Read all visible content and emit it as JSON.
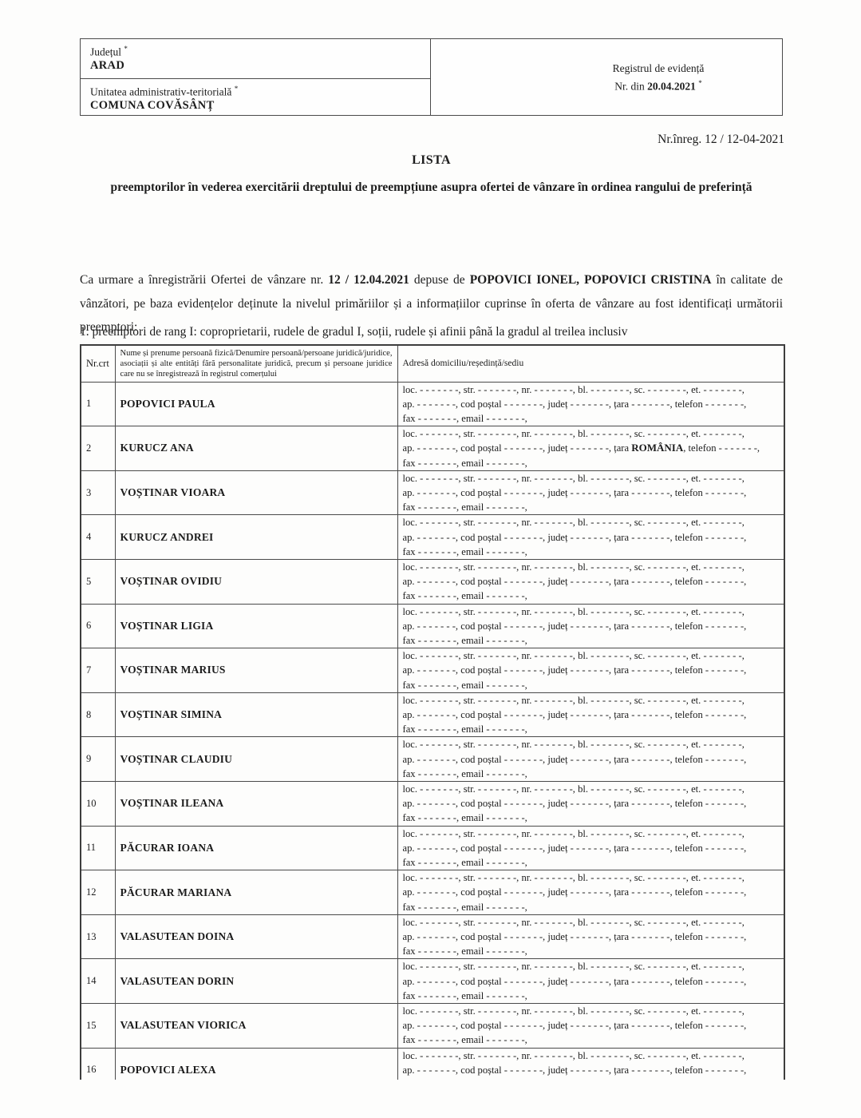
{
  "header": {
    "judet_label": "Județul",
    "judet_value": "ARAD",
    "uat_label": "Unitatea administrativ-teritorială",
    "uat_value": "COMUNA COVĂSÂNȚ",
    "registru_line1": "Registrul de evidență",
    "registru_prefix": "Nr. din ",
    "registru_date": "20.04.2021",
    "asterisk": "*"
  },
  "doc": {
    "nr_inreg": "Nr.înreg. 12 / 12-04-2021",
    "title": "LISTA",
    "subtitle": "preemptorilor în vederea exercitării dreptului de preempțiune asupra ofertei de vânzare în ordinea rangului de preferință",
    "para_part1": "Ca urmare a înregistrării Ofertei de vânzare nr. ",
    "para_bold1": "12 / 12.04.2021",
    "para_part2": " depuse de ",
    "para_bold2": "POPOVICI IONEL, POPOVICI CRISTINA",
    "para_part3": " în calitate de vânzători, pe baza evidențelor deținute la nivelul primăriilor și a informațiilor cuprinse în oferta de vânzare au fost identificați următorii preemptori:",
    "rank_line": "1. preemptori de rang I: coproprietarii, rudele de gradul I, soții, rudele și afinii până la gradul al treilea inclusiv"
  },
  "table": {
    "col1_header": "Nr.crt",
    "col2_header": "Nume și prenume persoană fizică/Denumire persoană/persoane juridică/juridice, asociații și alte entități fără personalitate juridică, precum și persoane juridice care nu se înregistrează în registrul comerțului",
    "col3_header": "Adresă domiciliu/reședință/sediu",
    "addr_line1": "loc. - - - - - - -, str. - - - - - - -, nr. - - - - - - -, bl. - - - - - - -, sc. - - - - - - -, et. - - - - - - -,",
    "addr_line2_prefix": "ap. - - - - - - -, cod poștal - - - - - - -, județ - - - - - - -, țara ",
    "addr_tara_placeholder": "- - - - - - -",
    "addr_line2_suffix": ", telefon - - - - - - -,",
    "addr_line3": "fax - - - - - - -, email - - - - - - -,",
    "rows": [
      {
        "nr": "1",
        "name": "POPOVICI PAULA",
        "tara": null
      },
      {
        "nr": "2",
        "name": "KURUCZ ANA",
        "tara": "ROMÂNIA"
      },
      {
        "nr": "3",
        "name": "VOȘTINAR VIOARA",
        "tara": null
      },
      {
        "nr": "4",
        "name": "KURUCZ ANDREI",
        "tara": null
      },
      {
        "nr": "5",
        "name": "VOȘTINAR OVIDIU",
        "tara": null
      },
      {
        "nr": "6",
        "name": "VOȘTINAR LIGIA",
        "tara": null
      },
      {
        "nr": "7",
        "name": "VOȘTINAR MARIUS",
        "tara": null
      },
      {
        "nr": "8",
        "name": "VOȘTINAR SIMINA",
        "tara": null
      },
      {
        "nr": "9",
        "name": "VOȘTINAR CLAUDIU",
        "tara": null
      },
      {
        "nr": "10",
        "name": "VOȘTINAR ILEANA",
        "tara": null
      },
      {
        "nr": "11",
        "name": "PĂCURAR IOANA",
        "tara": null
      },
      {
        "nr": "12",
        "name": "PĂCURAR MARIANA",
        "tara": null
      },
      {
        "nr": "13",
        "name": "VALASUTEAN DOINA",
        "tara": null
      },
      {
        "nr": "14",
        "name": "VALASUTEAN DORIN",
        "tara": null
      },
      {
        "nr": "15",
        "name": "VALASUTEAN VIORICA",
        "tara": null
      },
      {
        "nr": "16",
        "name": "POPOVICI ALEXA",
        "tara": null
      }
    ]
  }
}
